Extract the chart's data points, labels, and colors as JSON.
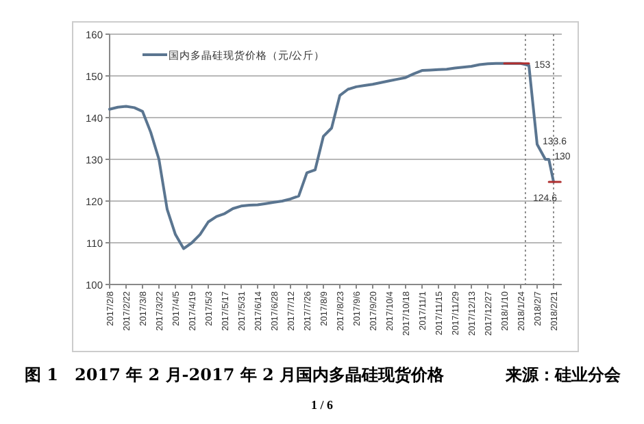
{
  "chart_data": {
    "type": "line",
    "title": "图 1　2017 年 2 月-2017 年 2 月国内多晶硅现货价格",
    "legend": "top left",
    "grid": "y",
    "ylim": [
      100,
      160
    ],
    "yticks": [
      100,
      110,
      120,
      130,
      140,
      150,
      160
    ],
    "xlim": [
      "2017-02-08",
      "2018-02-28"
    ],
    "xticks": [
      {
        "value": "2017-02-08",
        "label": "2017/2/8"
      },
      {
        "value": "2017-02-22",
        "label": "2017/2/22"
      },
      {
        "value": "2017-03-08",
        "label": "2017/3/8"
      },
      {
        "value": "2017-03-22",
        "label": "2017/3/22"
      },
      {
        "value": "2017-04-05",
        "label": "2017/4/5"
      },
      {
        "value": "2017-04-19",
        "label": "2017/4/19"
      },
      {
        "value": "2017-05-03",
        "label": "2017/5/3"
      },
      {
        "value": "2017-05-17",
        "label": "2017/5/17"
      },
      {
        "value": "2017-05-31",
        "label": "2017/5/31"
      },
      {
        "value": "2017-06-14",
        "label": "2017/6/14"
      },
      {
        "value": "2017-06-28",
        "label": "2017/6/28"
      },
      {
        "value": "2017-07-12",
        "label": "2017/7/12"
      },
      {
        "value": "2017-07-26",
        "label": "2017/7/26"
      },
      {
        "value": "2017-08-09",
        "label": "2017/8/9"
      },
      {
        "value": "2017-08-23",
        "label": "2017/8/23"
      },
      {
        "value": "2017-09-06",
        "label": "2017/9/6"
      },
      {
        "value": "2017-09-20",
        "label": "2017/9/20"
      },
      {
        "value": "2017-10-04",
        "label": "2017/10/4"
      },
      {
        "value": "2017-10-18",
        "label": "2017/10/18"
      },
      {
        "value": "2017-11-01",
        "label": "2017/11/1"
      },
      {
        "value": "2017-11-15",
        "label": "2017/11/15"
      },
      {
        "value": "2017-11-29",
        "label": "2017/11/29"
      },
      {
        "value": "2017-12-13",
        "label": "2017/12/13"
      },
      {
        "value": "2017-12-27",
        "label": "2017/12/27"
      },
      {
        "value": "2018-01-10",
        "label": "2018/1/10"
      },
      {
        "value": "2018-01-24",
        "label": "2018/1/24"
      },
      {
        "value": "2018-02-07",
        "label": "2018/2/7"
      },
      {
        "value": "2018-02-21",
        "label": "2018/2/21"
      }
    ],
    "series": [
      {
        "name": "国内多晶硅现货价格（元/公斤）",
        "color": "#5a7590",
        "x": [
          "2017-02-08",
          "2017-02-15",
          "2017-02-22",
          "2017-03-01",
          "2017-03-08",
          "2017-03-15",
          "2017-03-22",
          "2017-03-29",
          "2017-04-05",
          "2017-04-12",
          "2017-04-19",
          "2017-04-26",
          "2017-05-03",
          "2017-05-10",
          "2017-05-17",
          "2017-05-24",
          "2017-05-31",
          "2017-06-07",
          "2017-06-14",
          "2017-06-21",
          "2017-06-28",
          "2017-07-05",
          "2017-07-12",
          "2017-07-19",
          "2017-07-26",
          "2017-08-02",
          "2017-08-09",
          "2017-08-16",
          "2017-08-23",
          "2017-08-30",
          "2017-09-06",
          "2017-09-13",
          "2017-09-20",
          "2017-09-27",
          "2017-10-04",
          "2017-10-11",
          "2017-10-18",
          "2017-10-25",
          "2017-11-01",
          "2017-11-08",
          "2017-11-15",
          "2017-11-22",
          "2017-11-29",
          "2017-12-06",
          "2017-12-13",
          "2017-12-20",
          "2017-12-27",
          "2018-01-03",
          "2018-01-10",
          "2018-01-17",
          "2018-01-24",
          "2018-01-31",
          "2018-02-07",
          "2018-02-14",
          "2018-02-17",
          "2018-02-21"
        ],
        "values": [
          142,
          142.5,
          142.7,
          142.4,
          141.5,
          136.5,
          130,
          118,
          112,
          108.6,
          110,
          112,
          115,
          116.3,
          117,
          118.2,
          118.8,
          119,
          119.1,
          119.4,
          119.7,
          120,
          120.5,
          121.2,
          126.8,
          127.5,
          135.5,
          137.5,
          145.3,
          146.8,
          147.4,
          147.7,
          148,
          148.4,
          148.8,
          149.2,
          149.6,
          150.5,
          151.3,
          151.4,
          151.5,
          151.6,
          151.9,
          152.1,
          152.3,
          152.7,
          152.9,
          153,
          153,
          153,
          153,
          152.5,
          133.6,
          130,
          130,
          124.6
        ]
      },
      {
        "color": "#b03030",
        "x": [
          "2018-01-10",
          "2018-01-31"
        ],
        "values": [
          153,
          153
        ]
      },
      {
        "color": "#b03030",
        "x": [
          "2018-02-17",
          "2018-02-27"
        ],
        "values": [
          124.6,
          124.6
        ]
      }
    ],
    "ref_lines": [
      {
        "axis": "x",
        "value": "2018-01-28",
        "color": "#777777",
        "line_style": "dotted"
      },
      {
        "axis": "x",
        "value": "2018-02-21",
        "color": "#777777",
        "line_style": "dotted"
      }
    ],
    "annotations": [
      {
        "text": "153",
        "x": "2018-01-31",
        "y": 153
      },
      {
        "text": "133.6",
        "x": "2018-02-07",
        "y": 133.6
      },
      {
        "text": "130",
        "x": "2018-02-17",
        "y": 130
      },
      {
        "text": "124.6",
        "x": "2018-02-21",
        "y": 124.6
      },
      "来源：硅业分会",
      "1 / 6"
    ]
  }
}
